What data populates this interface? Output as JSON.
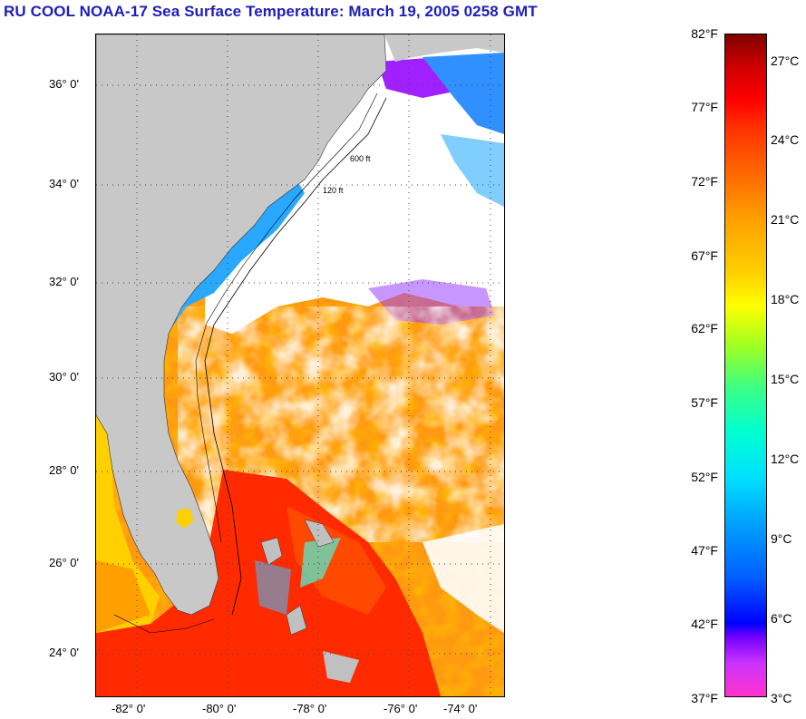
{
  "title": "RU COOL  NOAA-17  Sea Surface Temperature:  March 19, 2005 0258 GMT",
  "lat_labels": [
    "36° 0'",
    "34° 0'",
    "32° 0'",
    "30° 0'",
    "28° 0'",
    "26° 0'",
    "24° 0'"
  ],
  "lon_labels": [
    "-82° 0'",
    "-80° 0'",
    "-78° 0'",
    "-76° 0'",
    "-74° 0'"
  ],
  "depth_labels": [
    "120 ft",
    "600 ft"
  ],
  "colorbar": {
    "f_labels": [
      "82°F",
      "77°F",
      "72°F",
      "67°F",
      "62°F",
      "57°F",
      "52°F",
      "47°F",
      "42°F",
      "37°F"
    ],
    "c_labels": [
      "27°C",
      "24°C",
      "21°C",
      "18°C",
      "15°C",
      "12°C",
      "9°C",
      "6°C",
      "3°C"
    ]
  },
  "colors": {
    "land": "#c8c8c8",
    "title": "#1d1dbd",
    "warm": "#ff8c00",
    "hot": "#ff2200",
    "cool": "#00b0ff",
    "cloud": "#ffffff"
  }
}
